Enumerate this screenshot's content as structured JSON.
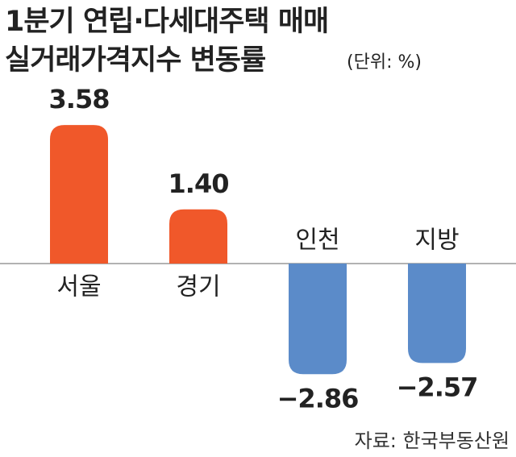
{
  "chart_data": {
    "type": "bar",
    "title": [
      "1분기 연립·다세대주택 매매",
      "실거래가격지수 변동률"
    ],
    "unit": "(단위: %)",
    "source": "자료: 한국부동산원",
    "categories": [
      "서울",
      "경기",
      "인천",
      "지방"
    ],
    "values": [
      3.58,
      1.4,
      -2.86,
      -2.57
    ],
    "value_labels": [
      "3.58",
      "1.40",
      "−2.86",
      "−2.57"
    ],
    "colors": [
      "#f0582a",
      "#f0582a",
      "#5b8bc9",
      "#5b8bc9"
    ]
  }
}
